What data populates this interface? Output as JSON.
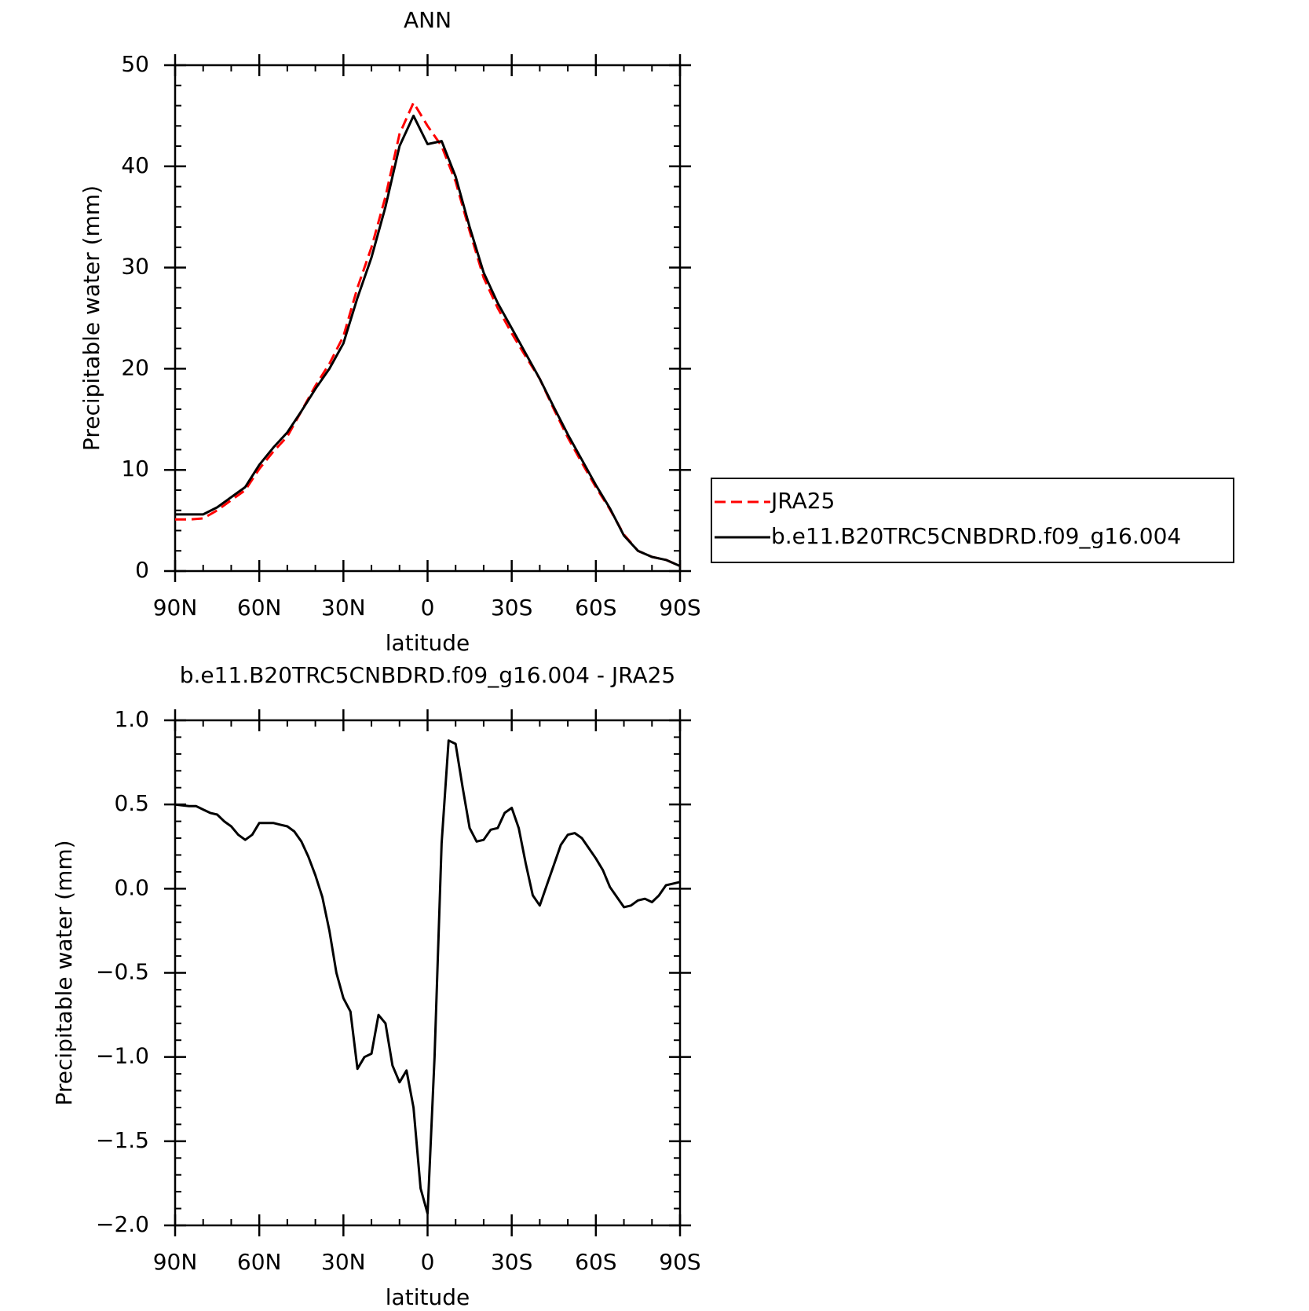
{
  "chart_data": [
    {
      "type": "line",
      "title": "ANN",
      "x_label": "latitude",
      "y_label": "Precipitable water (mm)",
      "x": [
        90,
        85,
        80,
        75,
        70,
        65,
        60,
        55,
        50,
        45,
        40,
        35,
        30,
        25,
        20,
        15,
        10,
        5,
        0,
        -5,
        -10,
        -15,
        -20,
        -25,
        -30,
        -35,
        -40,
        -45,
        -50,
        -55,
        -60,
        -65,
        -70,
        -75,
        -80,
        -85,
        -90
      ],
      "series": [
        {
          "name": "JRA25",
          "color": "#ff0000",
          "dash": true,
          "values": [
            5.1,
            5.1,
            5.2,
            6.0,
            7.0,
            8.0,
            10.1,
            11.8,
            13.3,
            15.8,
            18.3,
            20.5,
            23.2,
            28,
            32,
            37,
            43.2,
            46.3,
            44,
            42,
            38.5,
            33.6,
            29,
            26,
            23.5,
            21.2,
            19,
            16,
            13.2,
            10.7,
            8.3,
            6.1,
            3.6,
            2,
            1.4,
            1.1,
            0.5
          ]
        },
        {
          "name": "b.e11.B20TRC5CNBDRD.f09_g16.004",
          "color": "#000000",
          "dash": false,
          "values": [
            5.6,
            5.6,
            5.6,
            6.3,
            7.3,
            8.3,
            10.5,
            12.2,
            13.7,
            15.8,
            18,
            20,
            22.5,
            27,
            31,
            36,
            42,
            45,
            42.2,
            42.5,
            39,
            34,
            29.5,
            26.5,
            24,
            21.5,
            19,
            16.2,
            13.5,
            11,
            8.5,
            6.2,
            3.5,
            2,
            1.4,
            1.1,
            0.5
          ]
        }
      ],
      "xlim": [
        90,
        -90
      ],
      "xticks": [
        {
          "value": 90,
          "label": "90N"
        },
        {
          "value": 60,
          "label": "60N"
        },
        {
          "value": 30,
          "label": "30N"
        },
        0,
        {
          "value": -30,
          "label": "30S"
        },
        {
          "value": -60,
          "label": "60S"
        },
        {
          "value": -90,
          "label": "90S"
        }
      ],
      "ylim": [
        0,
        50
      ],
      "yticks": [
        0,
        10,
        20,
        30,
        40,
        50
      ],
      "legend": "right"
    },
    {
      "type": "line",
      "title": "b.e11.B20TRC5CNBDRD.f09_g16.004 - JRA25",
      "x_label": "latitude",
      "y_label": "Precipitable water (mm)",
      "x": [
        90,
        87.5,
        85,
        82.5,
        80,
        77.5,
        75,
        72.5,
        70,
        67.5,
        65,
        62.5,
        60,
        57.5,
        55,
        52.5,
        50,
        47.5,
        45,
        42.5,
        40,
        37.5,
        35,
        32.5,
        30,
        27.5,
        25,
        22.5,
        20,
        17.5,
        15,
        12.5,
        10,
        7.5,
        5,
        2.5,
        0,
        -2.5,
        -5,
        -7.5,
        -10,
        -12.5,
        -15,
        -17.5,
        -20,
        -22.5,
        -25,
        -27.5,
        -30,
        -32.5,
        -35,
        -37.5,
        -40,
        -42.5,
        -45,
        -47.5,
        -50,
        -52.5,
        -55,
        -57.5,
        -60,
        -62.5,
        -65,
        -67.5,
        -70,
        -72.5,
        -75,
        -77.5,
        -80,
        -82.5,
        -85,
        -87.5,
        -90
      ],
      "series": [
        {
          "color": "#000000",
          "dash": false,
          "values": [
            0.5,
            0.495,
            0.49,
            0.49,
            0.47,
            0.45,
            0.44,
            0.4,
            0.37,
            0.32,
            0.29,
            0.32,
            0.39,
            0.39,
            0.39,
            0.38,
            0.37,
            0.34,
            0.28,
            0.19,
            0.08,
            -0.05,
            -0.25,
            -0.5,
            -0.65,
            -0.73,
            -1.07,
            -1.0,
            -0.98,
            -0.75,
            -0.8,
            -1.05,
            -1.15,
            -1.08,
            -1.3,
            -1.78,
            -1.93,
            -1.0,
            0.27,
            0.88,
            0.86,
            0.6,
            0.36,
            0.28,
            0.29,
            0.35,
            0.36,
            0.45,
            0.48,
            0.36,
            0.15,
            -0.04,
            -0.1,
            0.02,
            0.14,
            0.26,
            0.32,
            0.33,
            0.3,
            0.24,
            0.18,
            0.11,
            0.01,
            -0.05,
            -0.11,
            -0.1,
            -0.07,
            -0.06,
            -0.08,
            -0.04,
            0.02,
            0.03,
            0.04
          ]
        }
      ],
      "xlim": [
        90,
        -90
      ],
      "xticks": [
        {
          "value": 90,
          "label": "90N"
        },
        {
          "value": 60,
          "label": "60N"
        },
        {
          "value": 30,
          "label": "30N"
        },
        0,
        {
          "value": -30,
          "label": "30S"
        },
        {
          "value": -60,
          "label": "60S"
        },
        {
          "value": -90,
          "label": "90S"
        }
      ],
      "ylim": [
        -2,
        1
      ],
      "yticks": [
        {
          "value": -2,
          "label": "−2.0"
        },
        {
          "value": -1.5,
          "label": "−1.5"
        },
        {
          "value": -1,
          "label": "−1.0"
        },
        {
          "value": -0.5,
          "label": "−0.5"
        },
        {
          "value": 0,
          "label": "0.0"
        },
        0.5,
        {
          "value": 1,
          "label": "1.0"
        }
      ]
    }
  ]
}
